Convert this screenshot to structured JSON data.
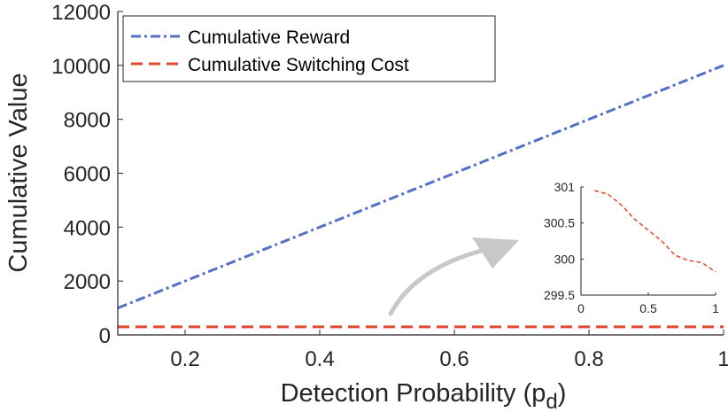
{
  "chart_data": [
    {
      "type": "line",
      "xlabel": "Detection Probability (p",
      "xlabel_subscript": "d",
      "xlabel_suffix": ")",
      "ylabel": "Cumulative Value",
      "xlim": [
        0.1,
        1
      ],
      "ylim": [
        0,
        12000
      ],
      "xticks": [
        0.2,
        0.4,
        0.6,
        0.8,
        1
      ],
      "xtick_labels": [
        "0.2",
        "0.4",
        "0.6",
        "0.8",
        "1"
      ],
      "yticks": [
        0,
        2000,
        4000,
        6000,
        8000,
        10000,
        12000
      ],
      "ytick_labels": [
        "0",
        "2000",
        "4000",
        "6000",
        "8000",
        "10000",
        "12000"
      ],
      "legend_position": "top-left",
      "series": [
        {
          "name": "Cumulative Reward",
          "color": "#5470c6",
          "style": "dash-dot",
          "x": [
            0.1,
            1
          ],
          "y": [
            1000,
            10000
          ]
        },
        {
          "name": "Cumulative Switching Cost",
          "color": "#e04a2e",
          "style": "dashed",
          "x": [
            0.1,
            1
          ],
          "y": [
            300,
            300
          ]
        }
      ],
      "annotation": "arrow pointing from switching cost line to inset"
    },
    {
      "type": "line",
      "role": "inset",
      "xlim": [
        0,
        1
      ],
      "ylim": [
        299.5,
        301
      ],
      "xticks": [
        0,
        0.5,
        1
      ],
      "xtick_labels": [
        "0",
        "0.5",
        "1"
      ],
      "yticks": [
        299.5,
        300,
        300.5,
        301
      ],
      "ytick_labels": [
        "299.5",
        "300",
        "300.5",
        "301"
      ],
      "series": [
        {
          "name": "Cumulative Switching Cost",
          "color": "#e04a2e",
          "style": "dashed",
          "x": [
            0.1,
            0.2,
            0.3,
            0.4,
            0.5,
            0.6,
            0.7,
            0.8,
            0.9,
            1.0
          ],
          "y": [
            300.95,
            300.9,
            300.75,
            300.55,
            300.4,
            300.25,
            300.05,
            299.98,
            299.95,
            299.82
          ]
        }
      ]
    }
  ]
}
